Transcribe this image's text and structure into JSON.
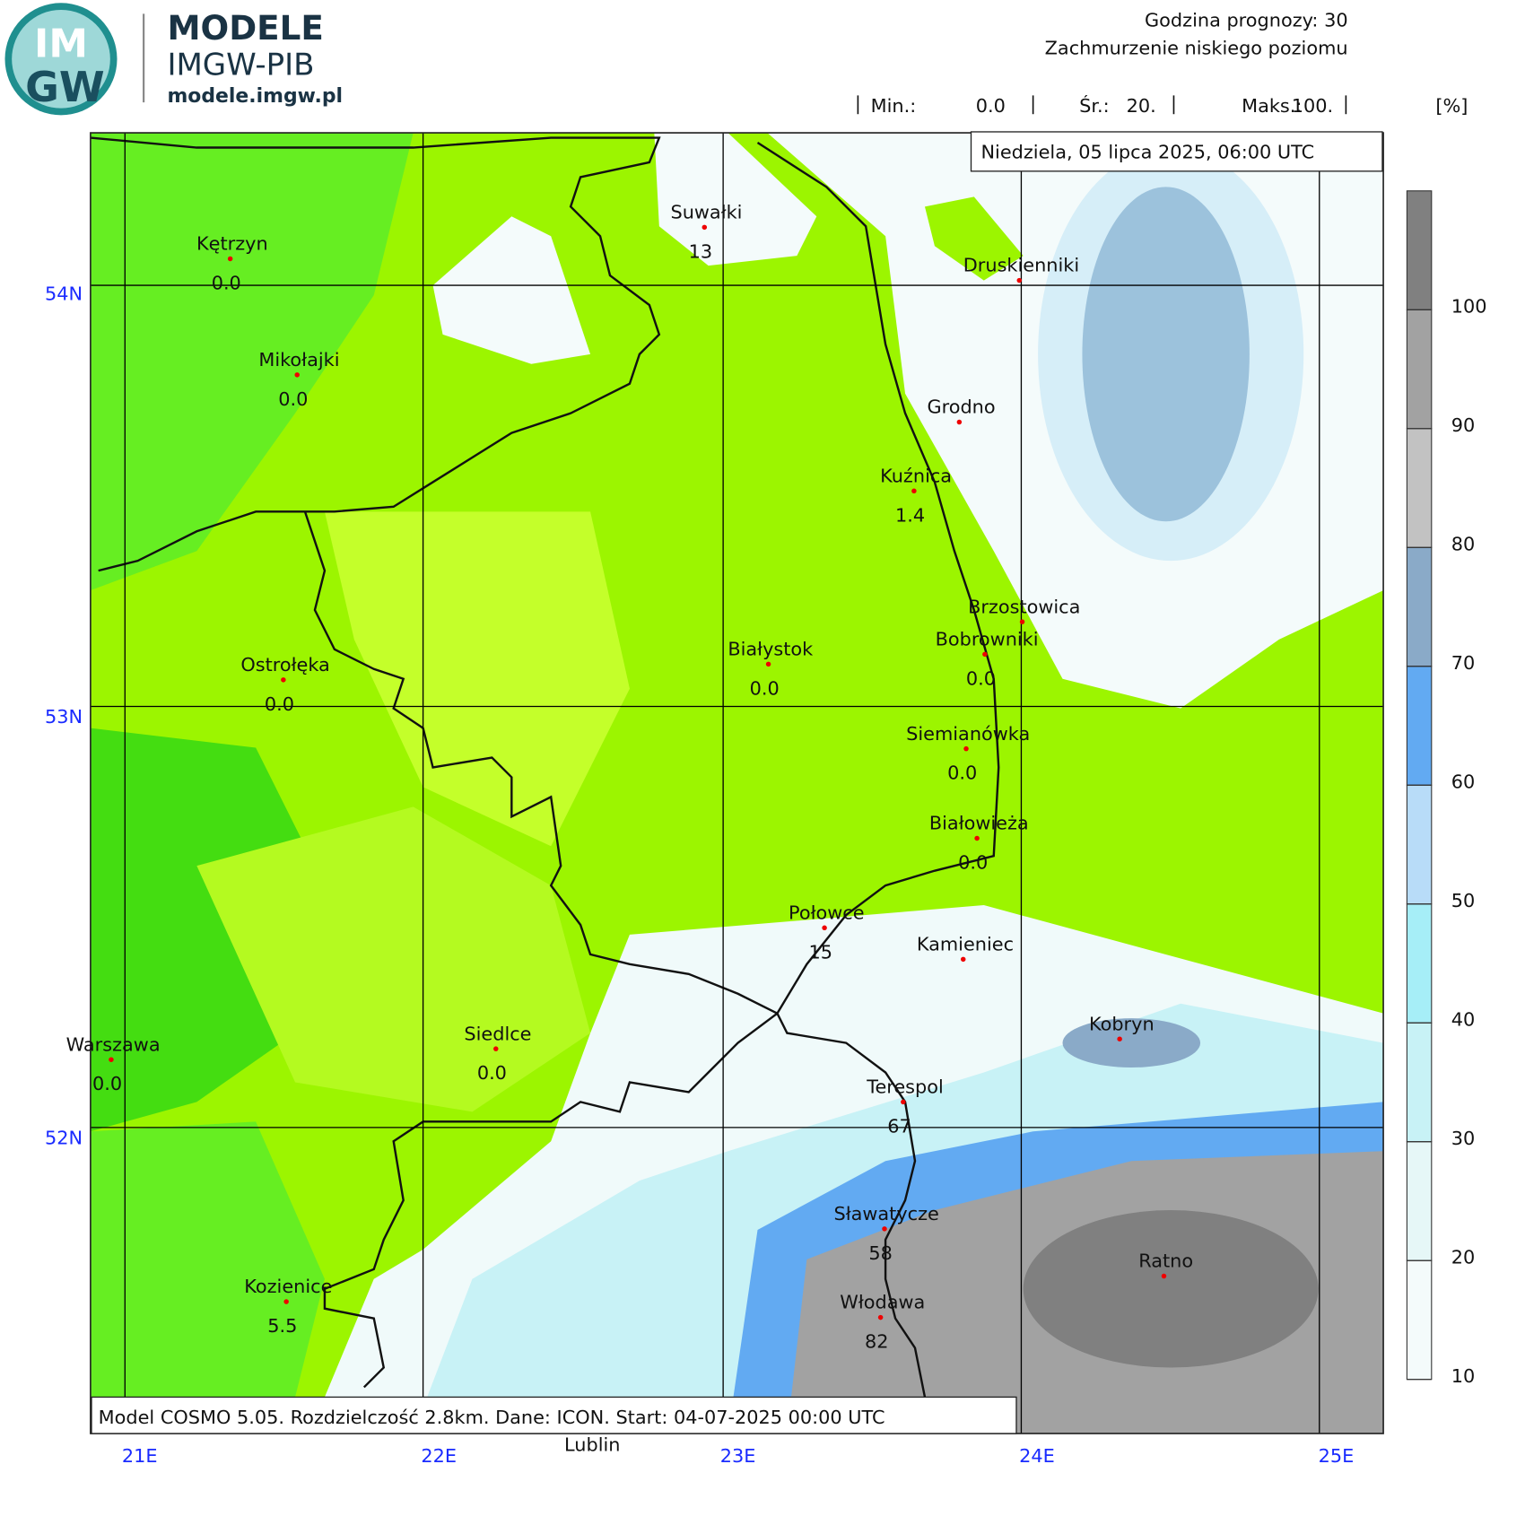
{
  "header": {
    "logo_top": "IM",
    "logo_bottom": "GW",
    "title": "MODELE",
    "subtitle": "IMGW-PIB",
    "url": "modele.imgw.pl",
    "forecast_hour": "Godzina prognozy: 30",
    "field": "Zachmurzenie niskiego poziomu",
    "stats": [
      {
        "label": "Min.:",
        "value": "0.0"
      },
      {
        "label": "Śr.:",
        "value": "20."
      },
      {
        "label": "Maks.:",
        "value": "100."
      }
    ],
    "unit": "[%]"
  },
  "date": "Niedziela, 05 lipca 2025, 06:00 UTC",
  "footer": "Model COSMO 5.05. Rozdzielczość 2.8km. Dane: ICON. Start: 04-07-2025 00:00 UTC",
  "grid": {
    "lon_labels": [
      "21E",
      "22E",
      "23E",
      "24E",
      "25E"
    ],
    "lat_labels": [
      "54N",
      "53N",
      "52N"
    ]
  },
  "colorbar": {
    "ticks": [
      10,
      20,
      30,
      40,
      50,
      60,
      70,
      80,
      90,
      100
    ],
    "colors": [
      "#f4fbfb",
      "#e6f7f7",
      "#c8f2f6",
      "#a6eef7",
      "#b8dcf8",
      "#62aaf2",
      "#8aaac8",
      "#c2c2c2",
      "#a2a2a2",
      "#808080"
    ]
  },
  "cities": [
    {
      "name": "Kętrzyn",
      "value": "0.0"
    },
    {
      "name": "Mikołajki",
      "value": "0.0"
    },
    {
      "name": "Suwałki",
      "value": "13"
    },
    {
      "name": "Druskienniki"
    },
    {
      "name": "Grodno"
    },
    {
      "name": "Kuźnica",
      "value": "1.4"
    },
    {
      "name": "Brzostowica"
    },
    {
      "name": "Bobrowniki",
      "value": "0.0"
    },
    {
      "name": "Białystok",
      "value": "0.0"
    },
    {
      "name": "Ostrołęka",
      "value": "0.0"
    },
    {
      "name": "Siemianówka",
      "value": "0.0"
    },
    {
      "name": "Białowieża",
      "value": "0.0"
    },
    {
      "name": "Połowce",
      "value": "15"
    },
    {
      "name": "Kamieniec"
    },
    {
      "name": "Kobryn"
    },
    {
      "name": "Warszawa",
      "value": "0.0"
    },
    {
      "name": "Siedlce",
      "value": "0.0"
    },
    {
      "name": "Terespol",
      "value": "67"
    },
    {
      "name": "Sławatycze",
      "value": "58"
    },
    {
      "name": "Ratno"
    },
    {
      "name": "Kozienice",
      "value": "5.5"
    },
    {
      "name": "Włodawa",
      "value": "82"
    },
    {
      "name": "Lublin"
    }
  ]
}
